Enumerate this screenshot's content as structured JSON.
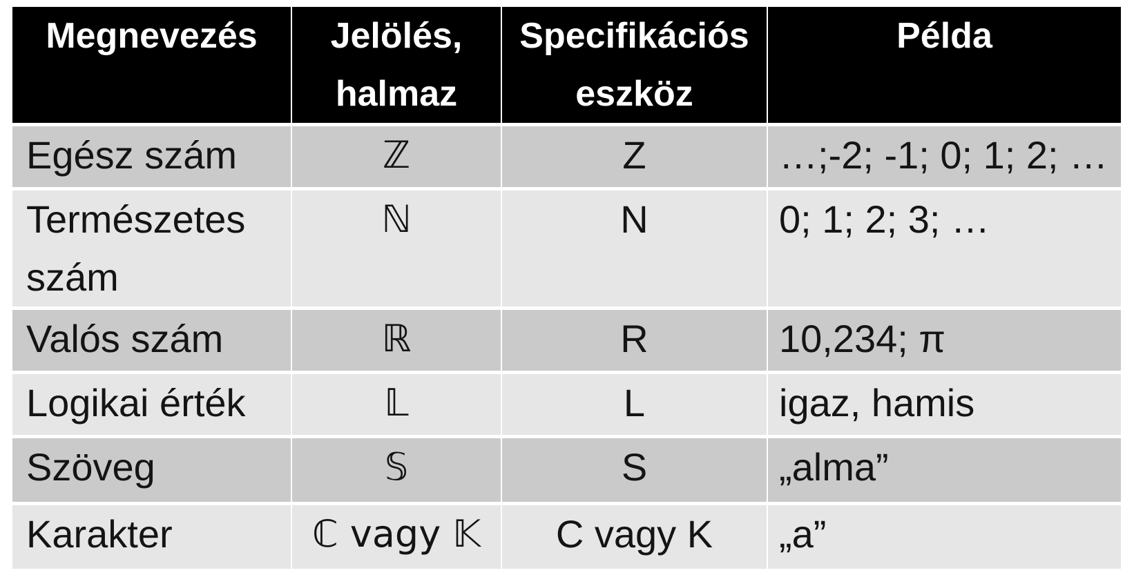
{
  "colors": {
    "header_background": "#000000",
    "header_text": "#ffffff",
    "row_dark": "#cacaca",
    "row_light": "#e6e6e6",
    "body_text": "#141414",
    "page_background": "#ffffff"
  },
  "table": {
    "headers": [
      "Megnevezés",
      "Jelölés, halmaz",
      "Specifikációs eszköz",
      "Példa"
    ],
    "rows": [
      {
        "name": "Egész szám",
        "notation": "ℤ",
        "spec": "Z",
        "example": "…;-2; -1; 0; 1; 2; …"
      },
      {
        "name": "Természetes szám",
        "notation": "ℕ",
        "spec": "N",
        "example": "0; 1; 2; 3; …"
      },
      {
        "name": "Valós szám",
        "notation": "ℝ",
        "spec": "R",
        "example": "10,234; π"
      },
      {
        "name": "Logikai érték",
        "notation": "𝕃",
        "spec": "L",
        "example": "igaz, hamis"
      },
      {
        "name": "Szöveg",
        "notation": "𝕊",
        "spec": "S",
        "example": "„alma”"
      },
      {
        "name": "Karakter",
        "notation": "ℂ vagy 𝕂",
        "spec": "C vagy K",
        "example": "„a”"
      }
    ]
  }
}
